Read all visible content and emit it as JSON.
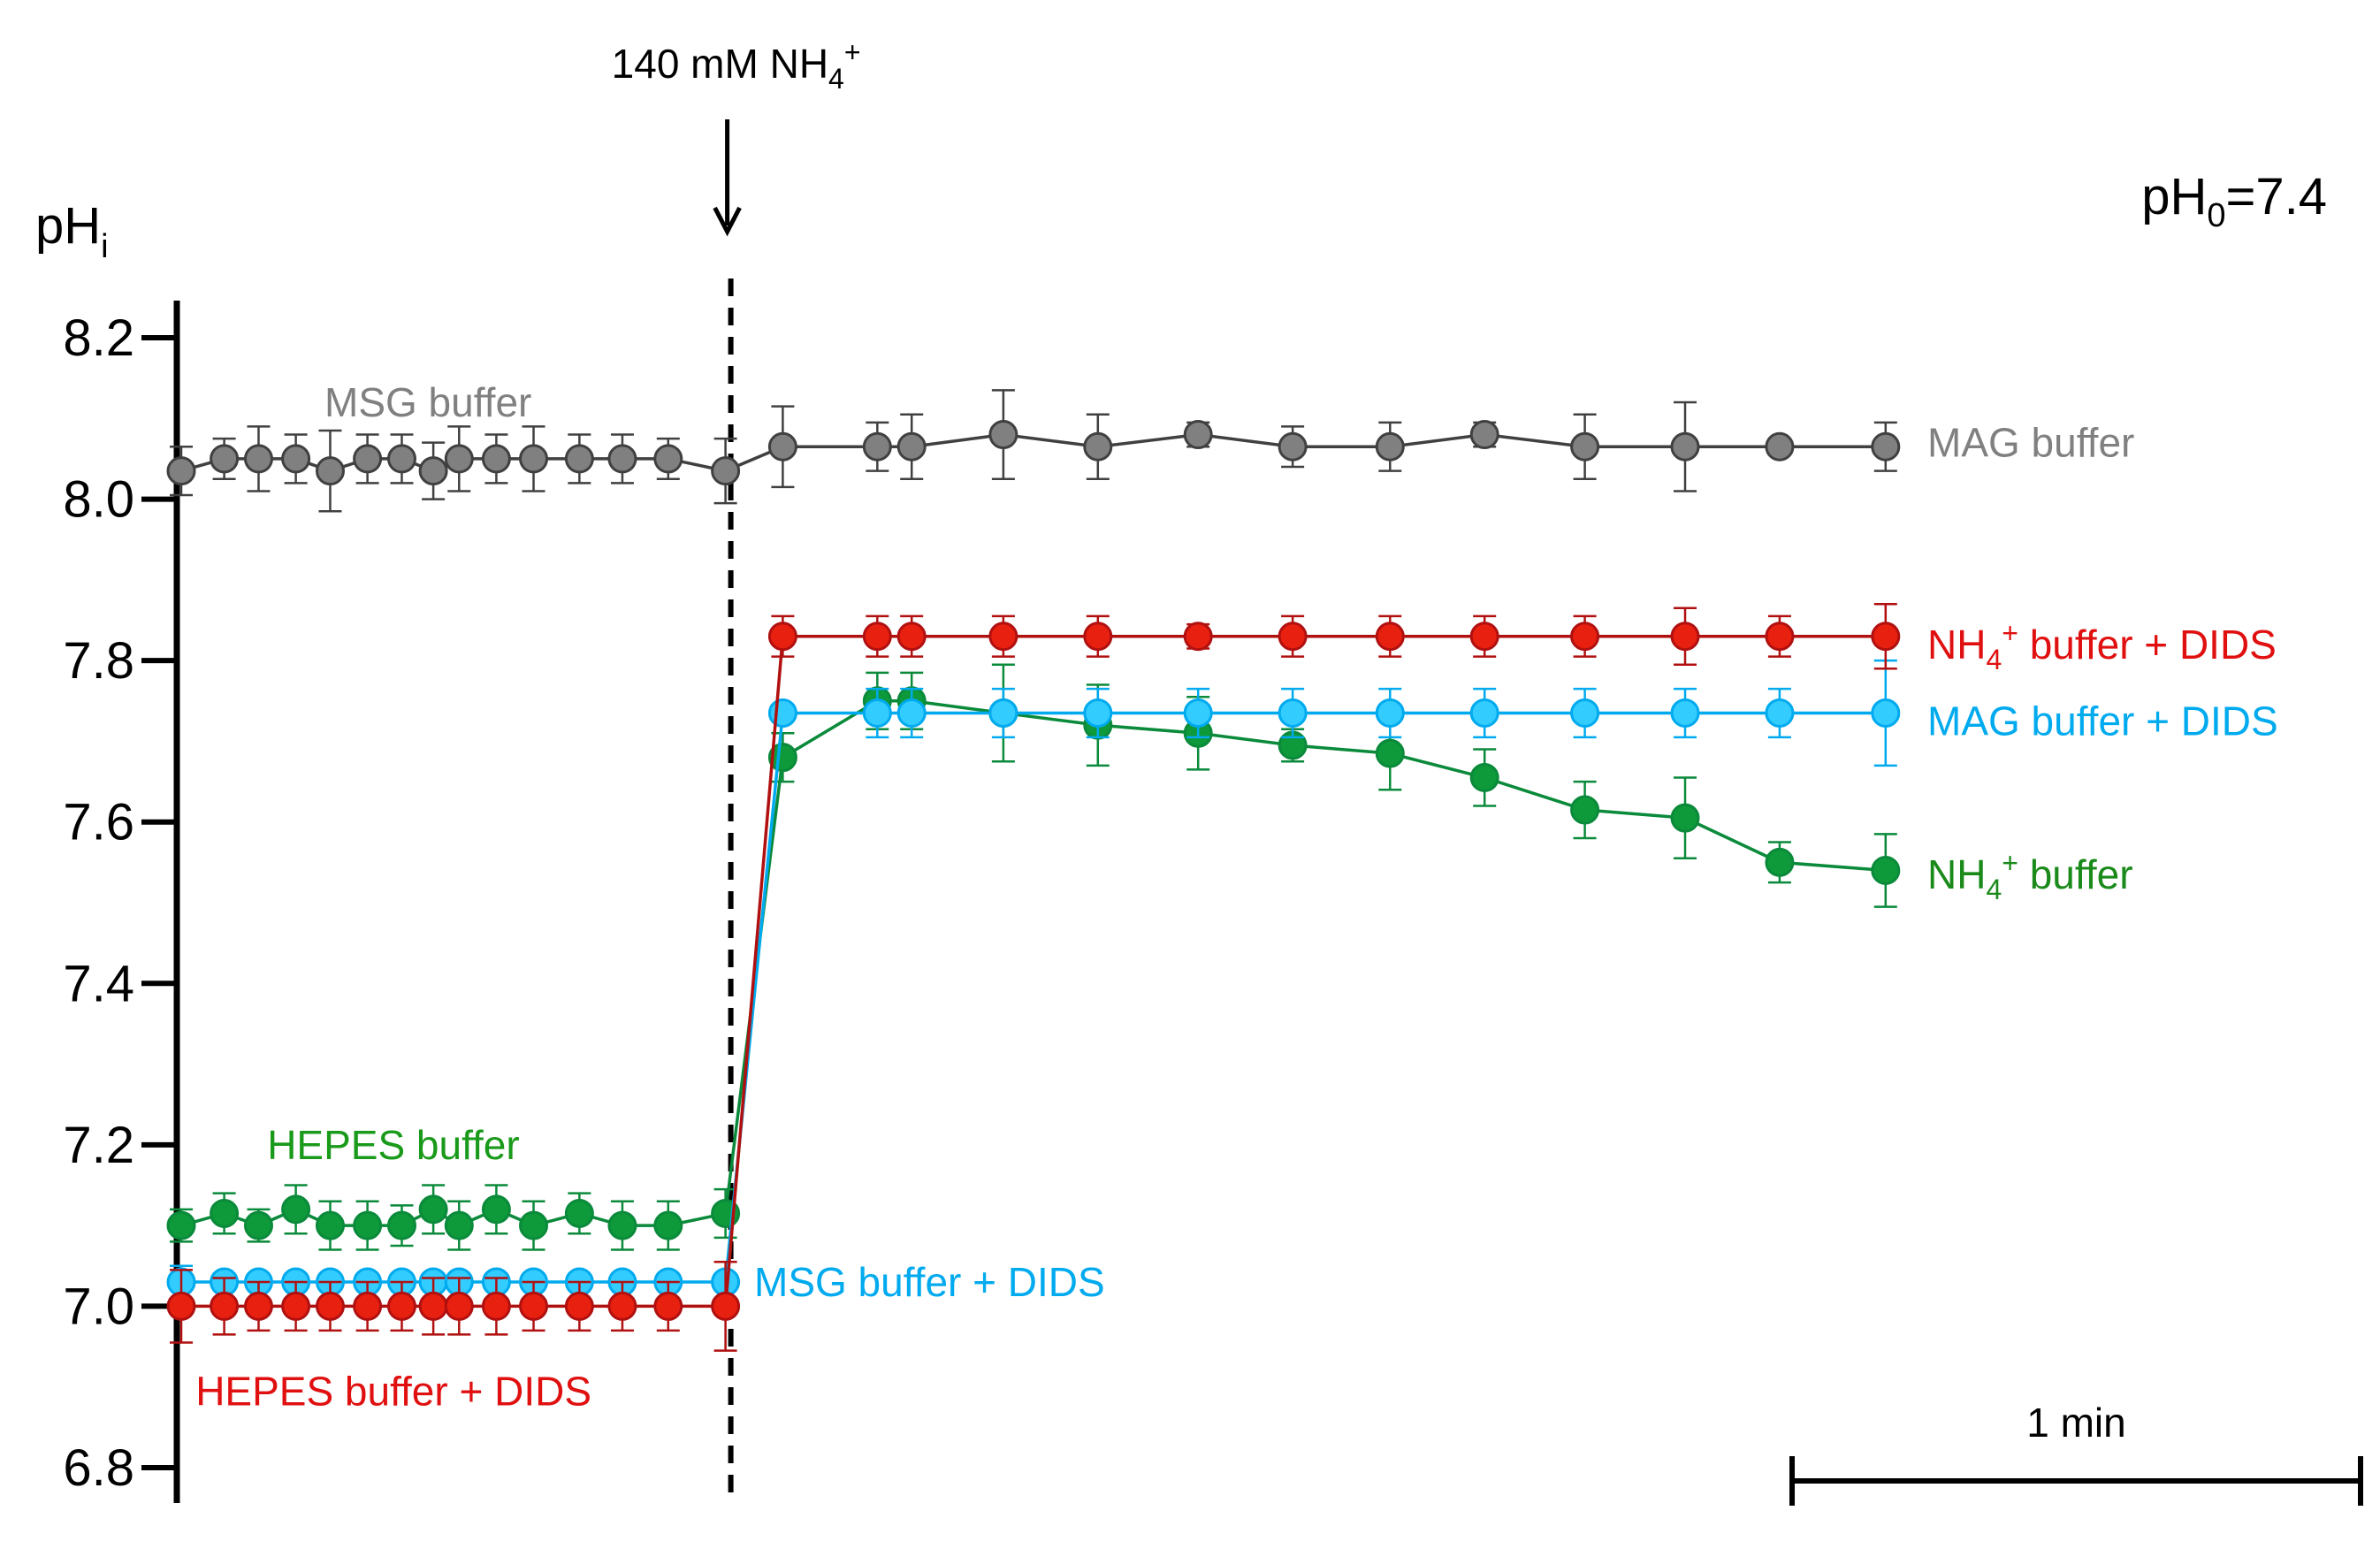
{
  "chart_data": {
    "type": "line",
    "title": "",
    "ylabel_main": "pH",
    "ylabel_sub": "i",
    "xlabel": "",
    "ylim": [
      6.8,
      8.2
    ],
    "yticks": [
      "6.8",
      "7.0",
      "7.2",
      "7.4",
      "7.6",
      "7.8",
      "8.0",
      "8.2"
    ],
    "x_unit": "min",
    "xlim": [
      0,
      5.8
    ],
    "annotations": {
      "arrow_text_main": "140 mM NH",
      "arrow_text_sub": "4",
      "arrow_text_sup": "+",
      "arrow_time": 1.9,
      "ph0_main": "pH",
      "ph0_sub": "0",
      "ph0_rest": "=7.4",
      "scale_bar_label": "1 min",
      "scale_bar_minutes": 1
    },
    "series": [
      {
        "name": "MSG buffer / MAG buffer",
        "color": "#404040",
        "fill": "#808080",
        "labels": [
          {
            "text": "MSG buffer",
            "color": "#808080",
            "anchor_time": 0.5,
            "anchor_ph": 8.12
          },
          {
            "text": "MAG buffer",
            "color": "#808080",
            "anchor_time": 6.1,
            "anchor_ph": 8.07
          }
        ],
        "x": [
          0.0,
          0.15,
          0.27,
          0.4,
          0.52,
          0.65,
          0.77,
          0.88,
          0.97,
          1.1,
          1.23,
          1.39,
          1.54,
          1.7,
          1.9,
          2.1,
          2.43,
          2.55,
          2.87,
          3.2,
          3.55,
          3.88,
          4.22,
          4.55,
          4.9,
          5.25,
          5.58,
          5.95
        ],
        "y": [
          8.035,
          8.05,
          8.05,
          8.05,
          8.035,
          8.05,
          8.05,
          8.035,
          8.05,
          8.05,
          8.05,
          8.05,
          8.05,
          8.05,
          8.035,
          8.065,
          8.065,
          8.065,
          8.08,
          8.065,
          8.08,
          8.065,
          8.065,
          8.08,
          8.065,
          8.065,
          8.065,
          8.065
        ],
        "err": [
          0.03,
          0.025,
          0.04,
          0.03,
          0.05,
          0.03,
          0.03,
          0.035,
          0.04,
          0.03,
          0.04,
          0.03,
          0.03,
          0.025,
          0.04,
          0.05,
          0.03,
          0.04,
          0.055,
          0.04,
          0.015,
          0.025,
          0.03,
          0.015,
          0.04,
          0.055,
          0.0,
          0.03
        ]
      },
      {
        "name": "HEPES buffer / NH4+ buffer",
        "color": "#0a8a3a",
        "fill": "#0e9a3a",
        "labels": [
          {
            "text": "HEPES buffer",
            "color": "#1a9a1a",
            "anchor_time": 0.3,
            "anchor_ph": 7.2
          },
          {
            "text": "NH",
            "sub": "4",
            "sup": "+",
            "rest": " buffer",
            "color": "#1a8a1a",
            "anchor_time": 6.1,
            "anchor_ph": 7.535
          }
        ],
        "x": [
          0.0,
          0.15,
          0.27,
          0.4,
          0.52,
          0.65,
          0.77,
          0.88,
          0.97,
          1.1,
          1.23,
          1.39,
          1.54,
          1.7,
          1.9,
          2.1,
          2.43,
          2.55,
          2.87,
          3.2,
          3.55,
          3.88,
          4.22,
          4.55,
          4.9,
          5.25,
          5.58,
          5.95
        ],
        "y": [
          7.1,
          7.115,
          7.1,
          7.12,
          7.1,
          7.1,
          7.1,
          7.12,
          7.1,
          7.12,
          7.1,
          7.115,
          7.1,
          7.1,
          7.115,
          7.68,
          7.75,
          7.75,
          7.735,
          7.72,
          7.71,
          7.695,
          7.685,
          7.655,
          7.615,
          7.605,
          7.55,
          7.54
        ],
        "err": [
          0.02,
          0.025,
          0.02,
          0.03,
          0.03,
          0.03,
          0.025,
          0.03,
          0.03,
          0.03,
          0.03,
          0.025,
          0.03,
          0.03,
          0.03,
          0.03,
          0.035,
          0.035,
          0.06,
          0.05,
          0.045,
          0.02,
          0.045,
          0.035,
          0.035,
          0.05,
          0.025,
          0.045
        ]
      },
      {
        "name": "MSG buffer + DIDS / MAG buffer + DIDS",
        "color": "#00aaee",
        "fill": "#33ccff",
        "labels": [
          {
            "text": "MSG buffer + DIDS",
            "color": "#00aaee",
            "anchor_time": 2.0,
            "anchor_ph": 7.03
          },
          {
            "text": "MAG buffer + DIDS",
            "color": "#00aaee",
            "anchor_time": 6.1,
            "anchor_ph": 7.725
          }
        ],
        "x": [
          0.0,
          0.15,
          0.27,
          0.4,
          0.52,
          0.65,
          0.77,
          0.88,
          0.97,
          1.1,
          1.23,
          1.39,
          1.54,
          1.7,
          1.9,
          2.1,
          2.43,
          2.55,
          2.87,
          3.2,
          3.55,
          3.88,
          4.22,
          4.55,
          4.9,
          5.25,
          5.58,
          5.95
        ],
        "y": [
          7.03,
          7.03,
          7.03,
          7.03,
          7.03,
          7.03,
          7.03,
          7.03,
          7.03,
          7.03,
          7.03,
          7.03,
          7.03,
          7.03,
          7.03,
          7.735,
          7.735,
          7.735,
          7.735,
          7.735,
          7.735,
          7.735,
          7.735,
          7.735,
          7.735,
          7.735,
          7.735,
          7.735
        ],
        "err": [
          0.02,
          0.01,
          0.01,
          0.01,
          0.01,
          0.01,
          0.01,
          0.01,
          0.01,
          0.01,
          0.01,
          0.01,
          0.01,
          0.01,
          0.01,
          0.01,
          0.03,
          0.03,
          0.03,
          0.03,
          0.03,
          0.03,
          0.03,
          0.03,
          0.03,
          0.03,
          0.03,
          0.065
        ]
      },
      {
        "name": "HEPES buffer + DIDS / NH4+ buffer + DIDS",
        "color": "#b01010",
        "fill": "#e8200f",
        "labels": [
          {
            "text": "HEPES buffer + DIDS",
            "color": "#e01010",
            "anchor_time": 0.05,
            "anchor_ph": 6.895
          },
          {
            "text": "NH",
            "sub": "4",
            "sup": "+",
            "rest": " buffer + DIDS",
            "color": "#e01010",
            "anchor_time": 6.1,
            "anchor_ph": 7.82
          }
        ],
        "x": [
          0.0,
          0.15,
          0.27,
          0.4,
          0.52,
          0.65,
          0.77,
          0.88,
          0.97,
          1.1,
          1.23,
          1.39,
          1.54,
          1.7,
          1.9,
          2.1,
          2.43,
          2.55,
          2.87,
          3.2,
          3.55,
          3.88,
          4.22,
          4.55,
          4.9,
          5.25,
          5.58,
          5.95
        ],
        "y": [
          7.0,
          7.0,
          7.0,
          7.0,
          7.0,
          7.0,
          7.0,
          7.0,
          7.0,
          7.0,
          7.0,
          7.0,
          7.0,
          7.0,
          7.0,
          7.83,
          7.83,
          7.83,
          7.83,
          7.83,
          7.83,
          7.83,
          7.83,
          7.83,
          7.83,
          7.83,
          7.83,
          7.83
        ],
        "err": [
          0.045,
          0.035,
          0.03,
          0.03,
          0.03,
          0.03,
          0.03,
          0.035,
          0.035,
          0.035,
          0.03,
          0.03,
          0.03,
          0.03,
          0.055,
          0.025,
          0.025,
          0.025,
          0.025,
          0.025,
          0.015,
          0.025,
          0.025,
          0.025,
          0.025,
          0.035,
          0.025,
          0.04
        ]
      }
    ]
  }
}
